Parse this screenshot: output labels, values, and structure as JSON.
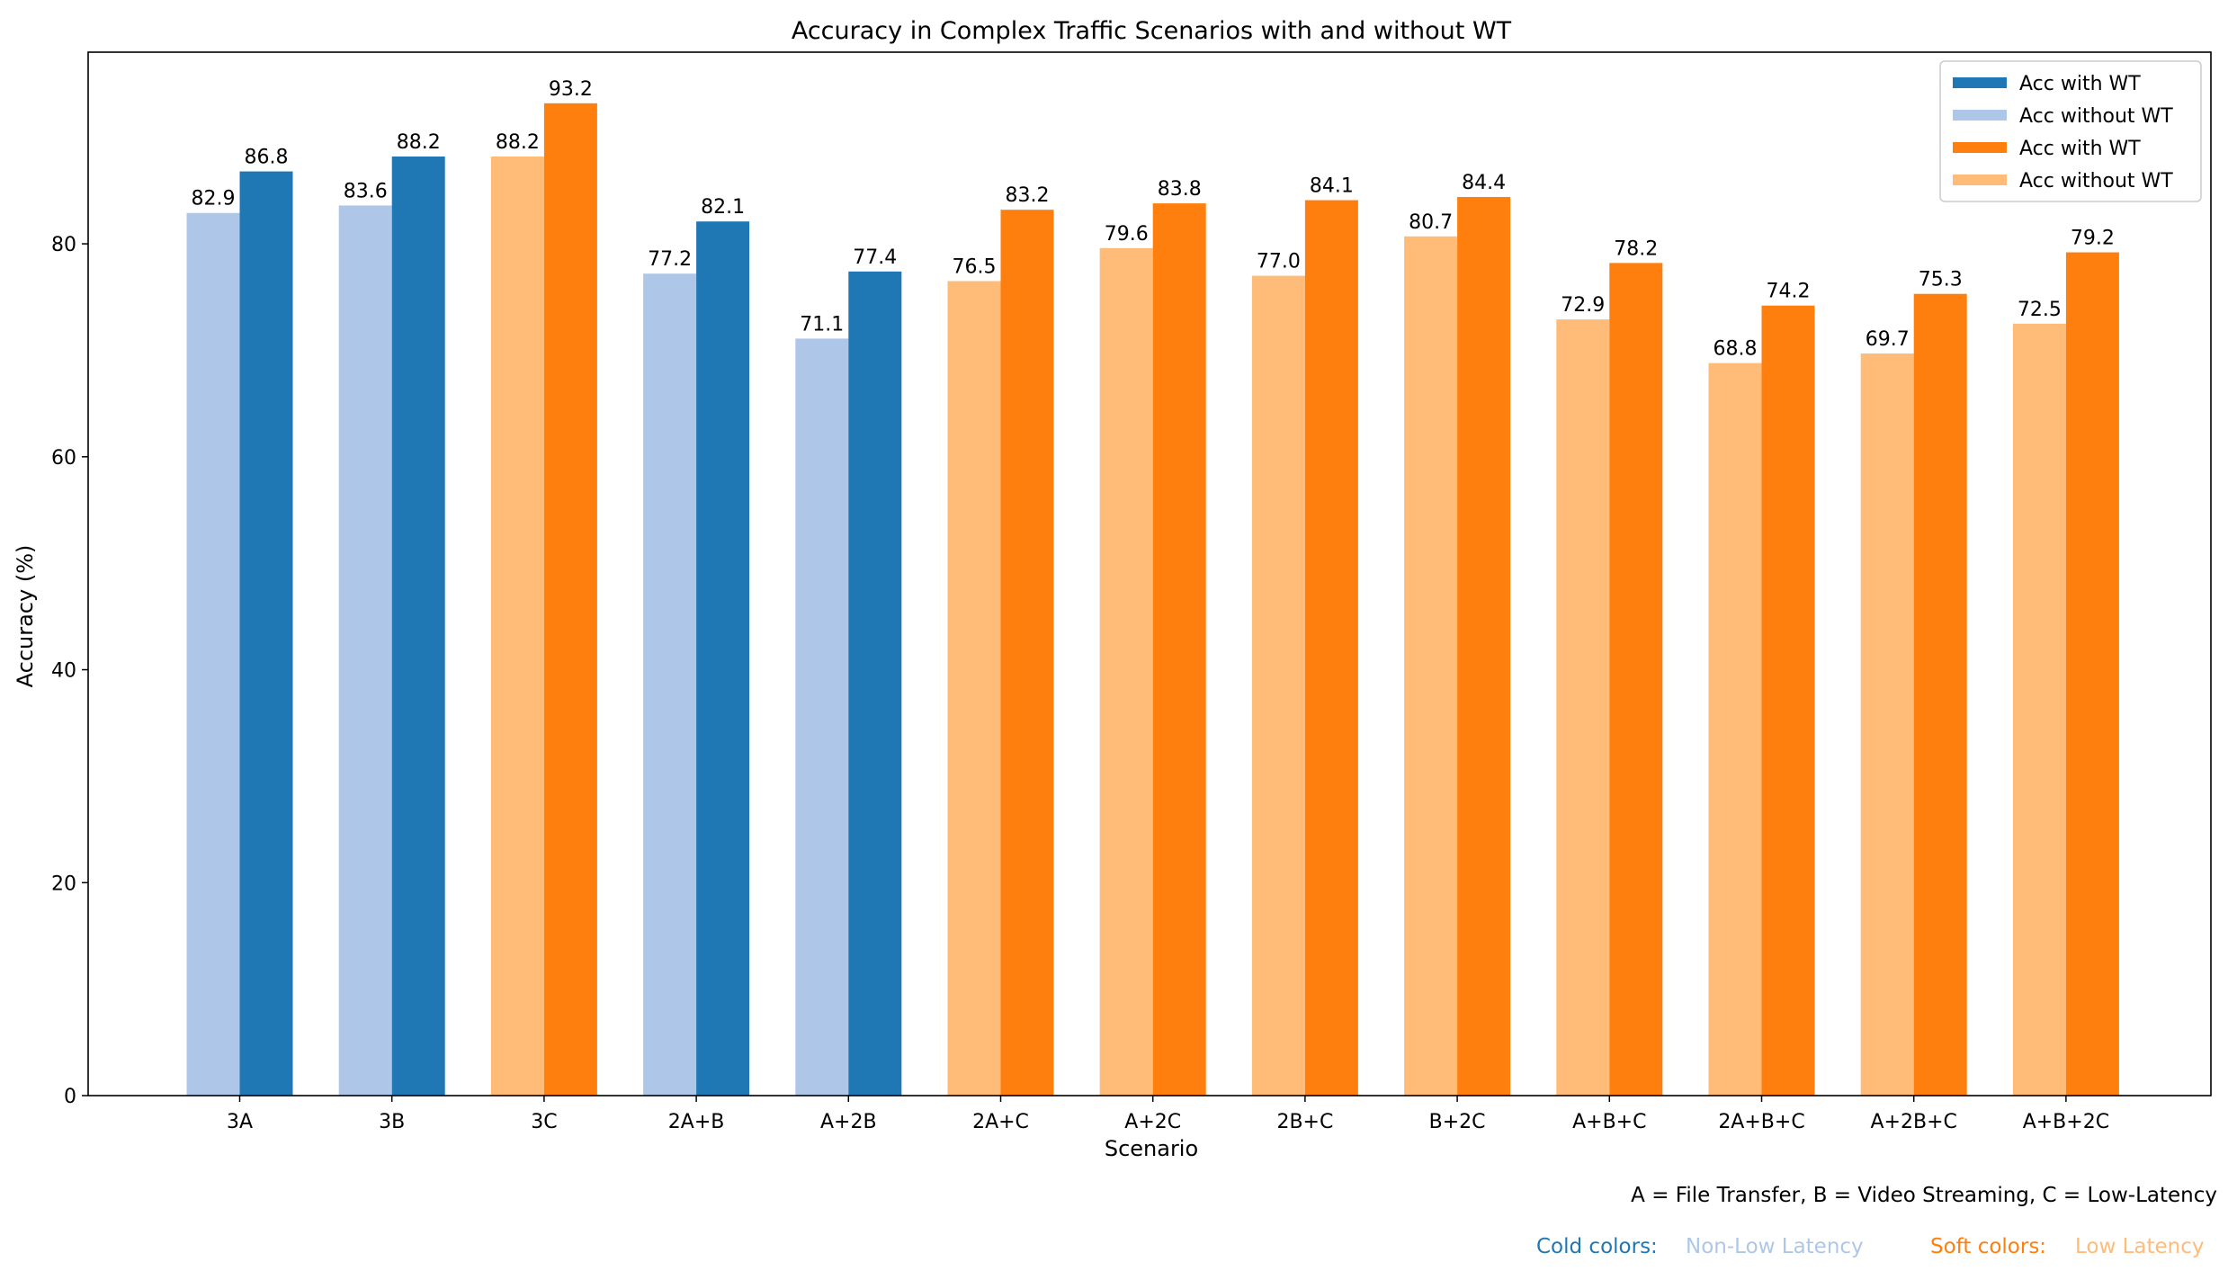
{
  "chart_data": {
    "type": "bar",
    "title": "Accuracy in Complex Traffic Scenarios with and without WT",
    "xlabel": "Scenario",
    "ylabel": "Accuracy (%)",
    "ylim": [
      0,
      98
    ],
    "yticks": [
      0,
      20,
      40,
      60,
      80
    ],
    "grid": false,
    "categories": [
      "3A",
      "3B",
      "3C",
      "2A+B",
      "A+2B",
      "2A+C",
      "A+2C",
      "2B+C",
      "B+2C",
      "A+B+C",
      "2A+B+C",
      "A+2B+C",
      "A+B+2C"
    ],
    "latency_group": [
      "cold",
      "cold",
      "soft",
      "cold",
      "cold",
      "soft",
      "soft",
      "soft",
      "soft",
      "soft",
      "soft",
      "soft",
      "soft"
    ],
    "series": [
      {
        "name": "Acc without WT",
        "values": [
          82.9,
          83.6,
          88.2,
          77.2,
          71.1,
          76.5,
          79.6,
          77.0,
          80.7,
          72.9,
          68.8,
          69.7,
          72.5
        ]
      },
      {
        "name": "Acc with WT",
        "values": [
          86.8,
          88.2,
          93.2,
          82.1,
          77.4,
          83.2,
          83.8,
          84.1,
          84.4,
          78.2,
          74.2,
          75.3,
          79.2
        ]
      }
    ],
    "colors": {
      "cold_with": "#1f77b4",
      "cold_without": "#aec7e8",
      "soft_with": "#ff7f0e",
      "soft_without": "#ffbb78"
    },
    "legend": {
      "placement": "top-right",
      "entries": [
        {
          "label": "Acc with WT",
          "color": "#1f77b4"
        },
        {
          "label": "Acc without WT",
          "color": "#aec7e8"
        },
        {
          "label": "Acc with WT",
          "color": "#ff7f0e"
        },
        {
          "label": "Acc without WT",
          "color": "#ffbb78"
        }
      ]
    },
    "annotations": {
      "key_text": "A = File Transfer, B = Video Streaming, C = Low-Latency",
      "cold_title": "Cold colors:",
      "cold_desc": "Non-Low Latency",
      "soft_title": "Soft colors:",
      "soft_desc": "Low Latency",
      "cold_title_color": "#1f77b4",
      "cold_desc_color": "#aec7e8",
      "soft_title_color": "#ff7f0e",
      "soft_desc_color": "#ffbb78"
    }
  }
}
